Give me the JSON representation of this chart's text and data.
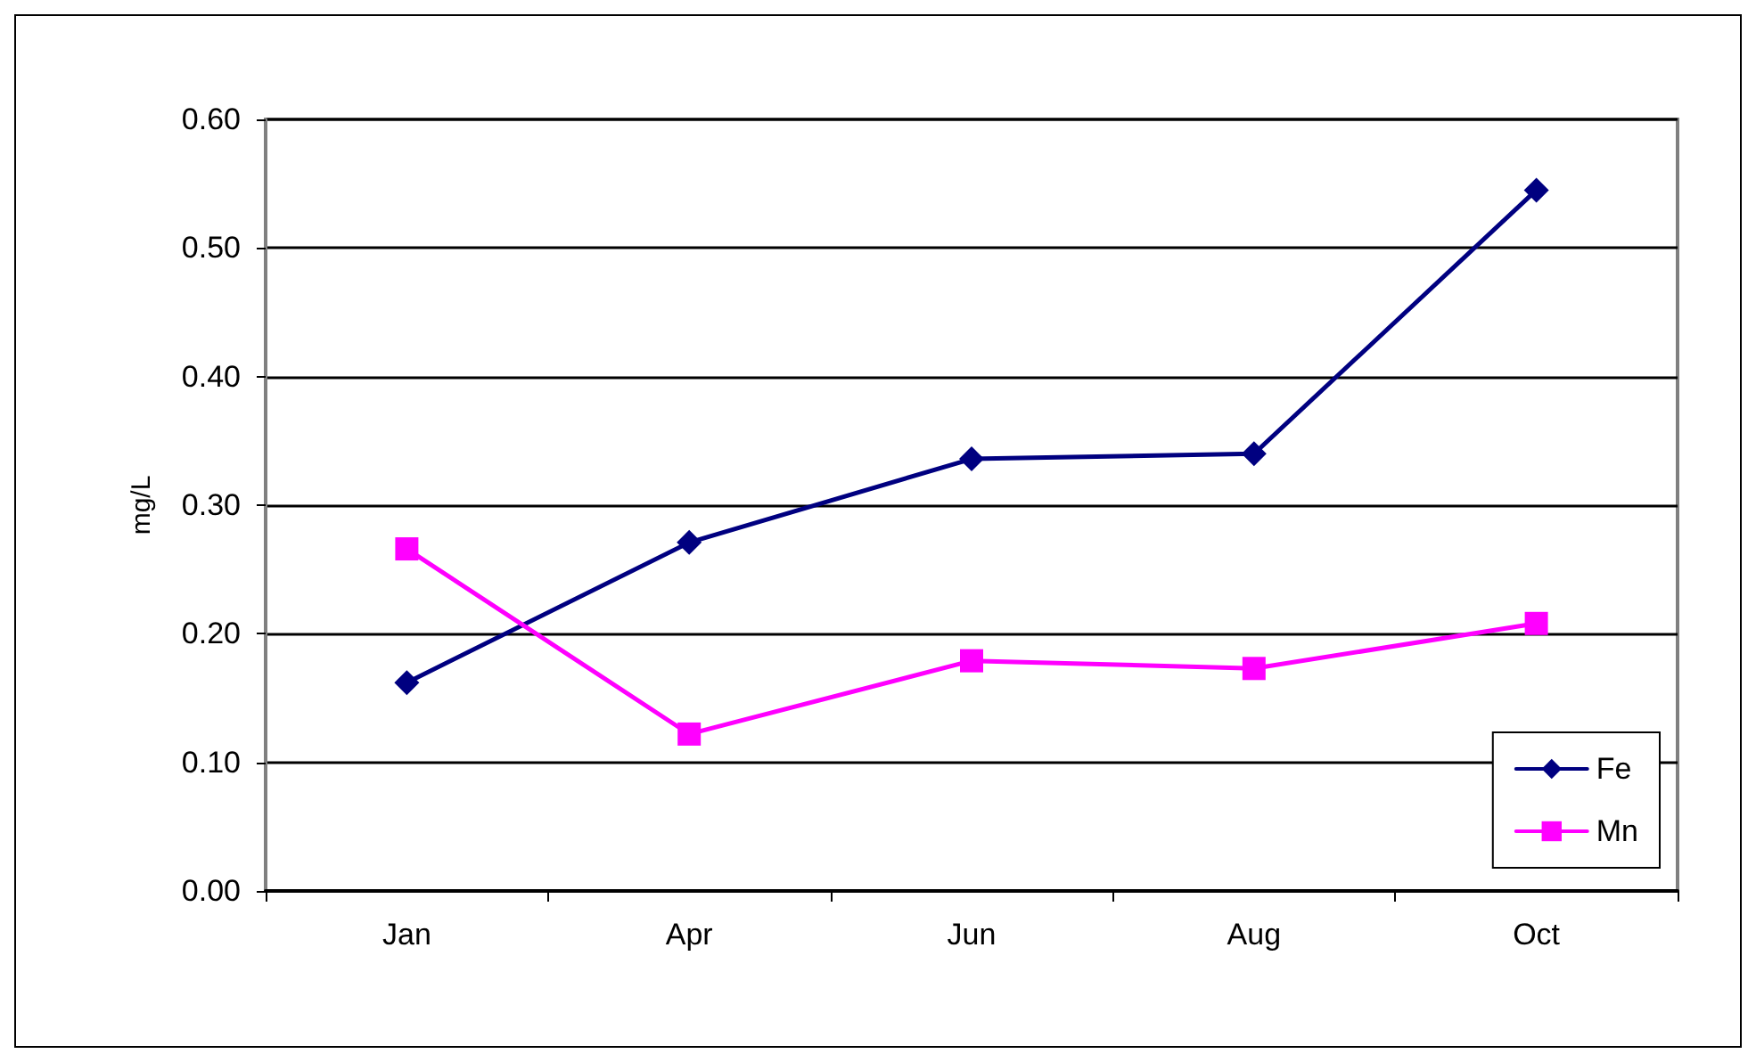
{
  "chart_data": {
    "type": "line",
    "ylabel": "mg/L",
    "categories": [
      "Jan",
      "Apr",
      "Jun",
      "Aug",
      "Oct"
    ],
    "series": [
      {
        "name": "Fe",
        "color": "#000080",
        "marker": "diamond",
        "values": [
          0.162,
          0.271,
          0.336,
          0.34,
          0.545
        ]
      },
      {
        "name": "Mn",
        "color": "#ff00ff",
        "marker": "square",
        "values": [
          0.266,
          0.122,
          0.179,
          0.173,
          0.208
        ]
      }
    ],
    "ylim": [
      0,
      0.6
    ],
    "yticks": [
      {
        "value": 0,
        "label": "0.00"
      },
      {
        "value": 0.1,
        "label": "0.10"
      },
      {
        "value": 0.2,
        "label": "0.20"
      },
      {
        "value": 0.3,
        "label": "0.30"
      },
      {
        "value": 0.4,
        "label": "0.40"
      },
      {
        "value": 0.5,
        "label": "0.50"
      },
      {
        "value": 0.6,
        "label": "0.60"
      }
    ],
    "grid": "y",
    "legend": "bottom right"
  }
}
